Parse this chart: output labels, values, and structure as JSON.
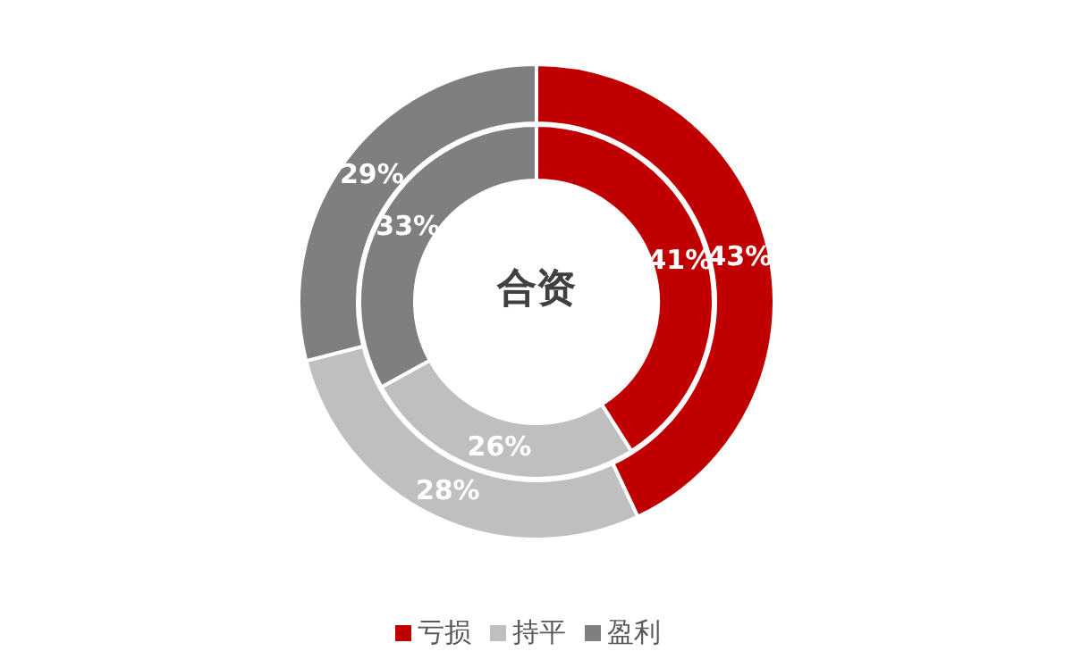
{
  "chart_data": {
    "type": "donut",
    "title": "合资",
    "categories": [
      "亏损",
      "持平",
      "盈利"
    ],
    "colors": [
      "#c00000",
      "#bfbfbf",
      "#7f7f7f"
    ],
    "series": [
      {
        "values": [
          43,
          28,
          29
        ],
        "value_labels": [
          "43%",
          "28%",
          "29%"
        ]
      },
      {
        "values": [
          41,
          26,
          33
        ],
        "value_labels": [
          "41%",
          "26%",
          "33%"
        ]
      }
    ],
    "legend": "bottom"
  }
}
